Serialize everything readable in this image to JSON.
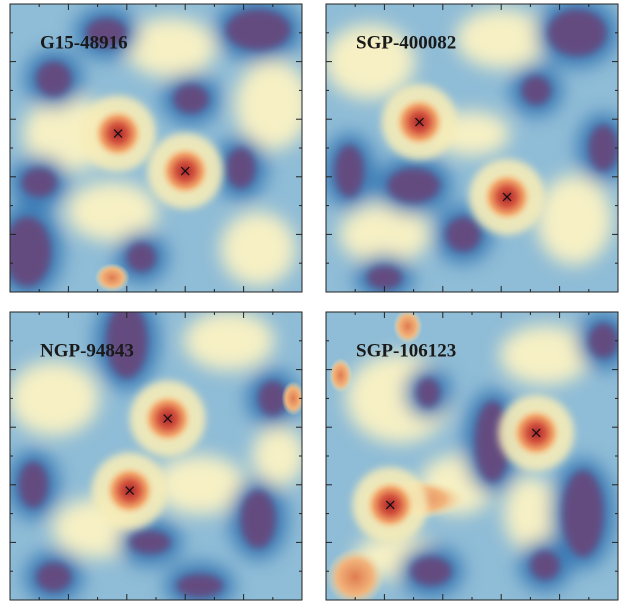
{
  "panels": [
    {
      "label": "G15-48916"
    },
    {
      "label": "SGP-400082"
    },
    {
      "label": "NGP-94843"
    },
    {
      "label": "SGP-106123"
    }
  ]
}
